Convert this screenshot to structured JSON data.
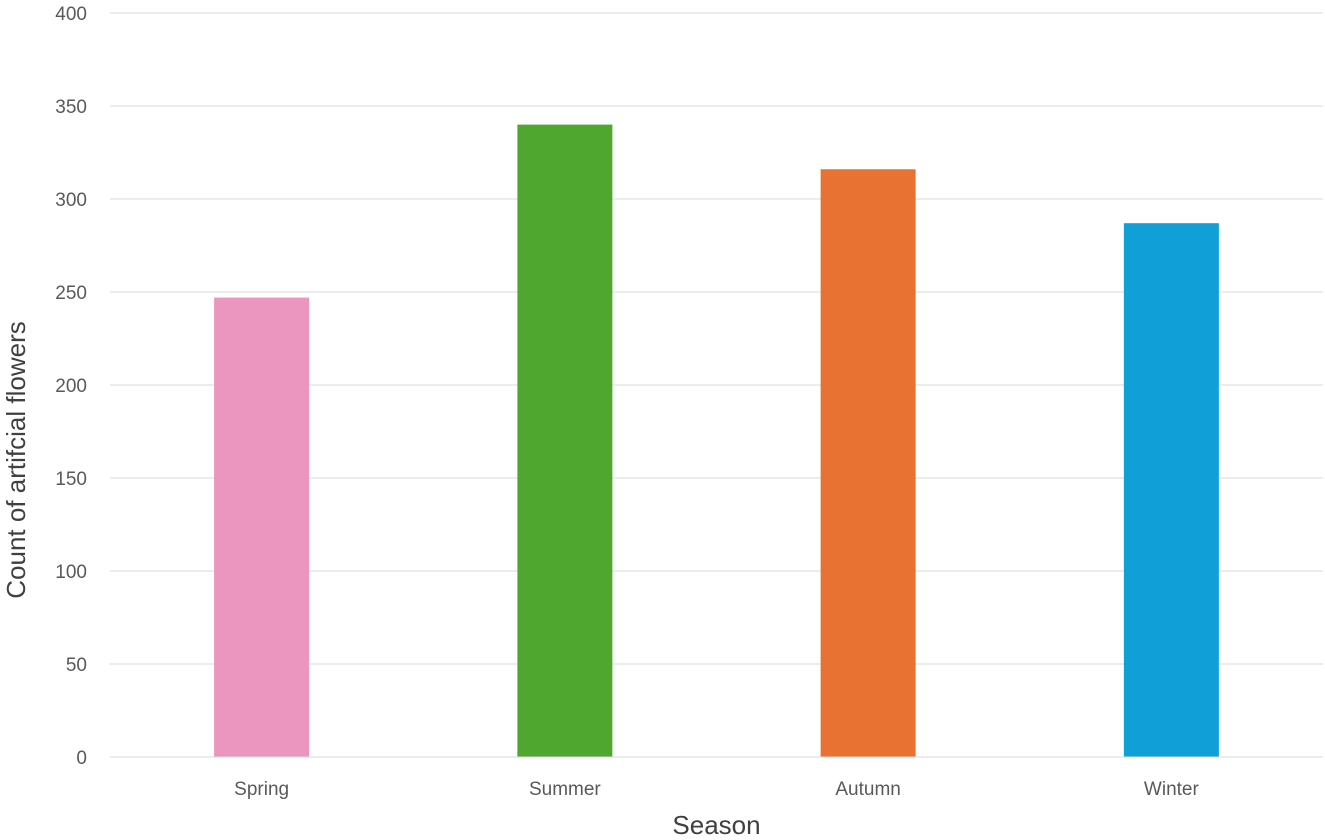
{
  "chart_data": {
    "type": "bar",
    "title": "",
    "xlabel": "Season",
    "ylabel": "Count of artifcial flowers",
    "categories": [
      "Spring",
      "Summer",
      "Autumn",
      "Winter"
    ],
    "values": [
      247,
      340,
      316,
      287
    ],
    "colors": [
      "#ea96bf",
      "#4fa730",
      "#e87231",
      "#109fd6"
    ],
    "ylim": [
      0,
      400
    ],
    "yticks": [
      "0",
      "50",
      "100",
      "150",
      "200",
      "250",
      "300",
      "350",
      "400"
    ],
    "grid": true,
    "legend": "none"
  }
}
